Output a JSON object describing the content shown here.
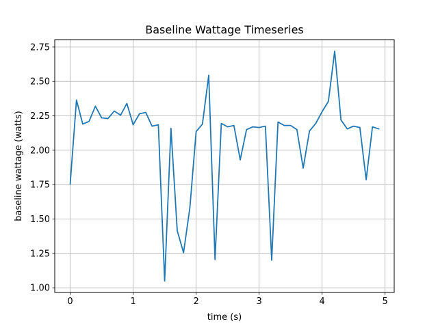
{
  "chart_data": {
    "type": "line",
    "title": "Baseline Wattage Timeseries",
    "xlabel": "time (s)",
    "ylabel": "baseline wattage (watts)",
    "xlim": [
      -0.245,
      5.145
    ],
    "ylim": [
      0.966,
      2.804
    ],
    "xticks": [
      0,
      1,
      2,
      3,
      4,
      5
    ],
    "yticks": [
      1.0,
      1.25,
      1.5,
      1.75,
      2.0,
      2.25,
      2.5,
      2.75
    ],
    "grid": true,
    "series": [
      {
        "color": "#1f77b4",
        "x": [
          0.0,
          0.1,
          0.2,
          0.3,
          0.4,
          0.5,
          0.6,
          0.7,
          0.8,
          0.9,
          1.0,
          1.1,
          1.2,
          1.3,
          1.4,
          1.5,
          1.6,
          1.7,
          1.8,
          1.9,
          2.0,
          2.1,
          2.2,
          2.3,
          2.4,
          2.5,
          2.6,
          2.7,
          2.8,
          2.9,
          3.0,
          3.1,
          3.2,
          3.3,
          3.4,
          3.5,
          3.6,
          3.7,
          3.8,
          3.9,
          4.0,
          4.1,
          4.2,
          4.3,
          4.4,
          4.5,
          4.6,
          4.7,
          4.8,
          4.9
        ],
        "y": [
          1.755,
          2.365,
          2.19,
          2.21,
          2.32,
          2.235,
          2.23,
          2.285,
          2.255,
          2.34,
          2.185,
          2.265,
          2.275,
          2.175,
          2.185,
          1.05,
          2.16,
          1.415,
          1.255,
          1.58,
          2.135,
          2.19,
          2.545,
          1.205,
          2.195,
          2.17,
          2.18,
          1.93,
          2.15,
          2.17,
          2.165,
          2.175,
          1.2,
          2.205,
          2.18,
          2.18,
          2.15,
          1.87,
          2.14,
          2.195,
          2.28,
          2.355,
          2.72,
          2.22,
          2.155,
          2.175,
          2.165,
          1.785,
          2.17,
          2.155
        ]
      }
    ]
  }
}
